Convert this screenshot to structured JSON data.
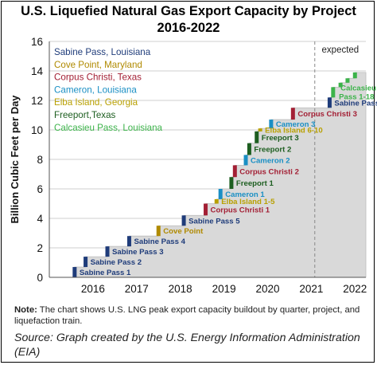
{
  "title_line1": "U.S. Liquefied Natural Gas Export Capacity by Project",
  "title_line2": "2016-2022",
  "note_label": "Note:",
  "note_text": " The chart shows U.S. LNG peak export capacity buildout by quarter, project, and liquefaction train.",
  "source": "Source: Graph created by the U.S. Energy Information Administration (EIA)",
  "chart_data": {
    "type": "area",
    "ylabel": "Billion Cubic Feet per Day",
    "ylim": [
      0,
      16
    ],
    "yticks": [
      0,
      2,
      4,
      6,
      8,
      10,
      12,
      14,
      16
    ],
    "xticks": [
      "2016",
      "2017",
      "2018",
      "2019",
      "2020",
      "2021",
      "2022"
    ],
    "xrange": [
      2015.5,
      2022.75
    ],
    "expected_start": 2021.58,
    "expected_label": "expected",
    "legend": [
      {
        "name": "Sabine Pass, Louisiana",
        "color": "#1f3c7a"
      },
      {
        "name": "Cove Point, Maryland",
        "color": "#b08a00"
      },
      {
        "name": "Corpus Christi, Texas",
        "color": "#a31f34"
      },
      {
        "name": "Cameron, Louisiana",
        "color": "#1a8fc4"
      },
      {
        "name": "Elba Island, Georgia",
        "color": "#b8a000"
      },
      {
        "name": "Freeport,Texas",
        "color": "#1d5e20"
      },
      {
        "name": "Calcasieu Pass, Louisiana",
        "color": "#3cb34a"
      }
    ],
    "steps": [
      {
        "x": 2016.08,
        "y0": 0.0,
        "y1": 0.7,
        "color": "#1f3c7a",
        "label": "Sabine Pass 1",
        "lc": "#1f3c7a"
      },
      {
        "x": 2016.33,
        "y0": 0.7,
        "y1": 1.4,
        "color": "#1f3c7a",
        "label": "Sabine Pass 2",
        "lc": "#1f3c7a"
      },
      {
        "x": 2016.83,
        "y0": 1.4,
        "y1": 2.1,
        "color": "#1f3c7a",
        "label": "Sabine Pass 3",
        "lc": "#1f3c7a"
      },
      {
        "x": 2017.33,
        "y0": 2.1,
        "y1": 2.8,
        "color": "#1f3c7a",
        "label": "Sabine Pass 4",
        "lc": "#1f3c7a"
      },
      {
        "x": 2018.0,
        "y0": 2.8,
        "y1": 3.5,
        "color": "#b08a00",
        "label": "Cove Point",
        "lc": "#b08a00"
      },
      {
        "x": 2018.58,
        "y0": 3.5,
        "y1": 4.2,
        "color": "#1f3c7a",
        "label": "Sabine Pass 5",
        "lc": "#1f3c7a"
      },
      {
        "x": 2019.08,
        "y0": 4.2,
        "y1": 5.0,
        "color": "#a31f34",
        "label": "Corpus Christi 1",
        "lc": "#a31f34"
      },
      {
        "x": 2019.33,
        "y0": 5.0,
        "y1": 5.3,
        "color": "#b8a000",
        "label": "Elba Island 1-5",
        "lc": "#b8a000"
      },
      {
        "x": 2019.42,
        "y0": 5.3,
        "y1": 6.0,
        "color": "#1a8fc4",
        "label": "Cameron 1",
        "lc": "#1a8fc4"
      },
      {
        "x": 2019.67,
        "y0": 6.0,
        "y1": 6.8,
        "color": "#1d5e20",
        "label": "Freeport 1",
        "lc": "#1d5e20"
      },
      {
        "x": 2019.75,
        "y0": 6.8,
        "y1": 7.6,
        "color": "#a31f34",
        "label": "Corpus Christi 2",
        "lc": "#a31f34"
      },
      {
        "x": 2020.0,
        "y0": 7.6,
        "y1": 8.3,
        "color": "#1a8fc4",
        "label": "Cameron 2",
        "lc": "#1a8fc4"
      },
      {
        "x": 2020.08,
        "y0": 8.3,
        "y1": 9.1,
        "color": "#1d5e20",
        "label": "Freeport 2",
        "lc": "#1d5e20"
      },
      {
        "x": 2020.25,
        "y0": 9.1,
        "y1": 9.9,
        "color": "#1d5e20",
        "label": "Freeport 3",
        "lc": "#1d5e20"
      },
      {
        "x": 2020.33,
        "y0": 9.9,
        "y1": 10.1,
        "color": "#b8a000",
        "label": "Elba Island 6-10",
        "lc": "#b8a000"
      },
      {
        "x": 2020.58,
        "y0": 10.1,
        "y1": 10.7,
        "color": "#1a8fc4",
        "label": "Cameron 3",
        "lc": "#1a8fc4"
      },
      {
        "x": 2021.08,
        "y0": 10.7,
        "y1": 11.5,
        "color": "#a31f34",
        "label": "Corpus Christi 3",
        "lc": "#a31f34"
      },
      {
        "x": 2021.92,
        "y0": 11.5,
        "y1": 12.2,
        "color": "#1f3c7a",
        "label": "Sabine Pass 6",
        "lc": "#1f3c7a"
      },
      {
        "x": 2022.0,
        "y0": 12.2,
        "y1": 12.9,
        "color": "#3cb34a",
        "label": "Calcasieu Pass 1-18",
        "lc": "#3cb34a"
      },
      {
        "x": 2022.17,
        "y0": 12.9,
        "y1": 13.2,
        "color": "#3cb34a",
        "label": "",
        "lc": "#3cb34a"
      },
      {
        "x": 2022.33,
        "y0": 13.2,
        "y1": 13.5,
        "color": "#3cb34a",
        "label": "",
        "lc": "#3cb34a"
      },
      {
        "x": 2022.5,
        "y0": 13.5,
        "y1": 13.9,
        "color": "#3cb34a",
        "label": "",
        "lc": "#3cb34a"
      }
    ]
  }
}
